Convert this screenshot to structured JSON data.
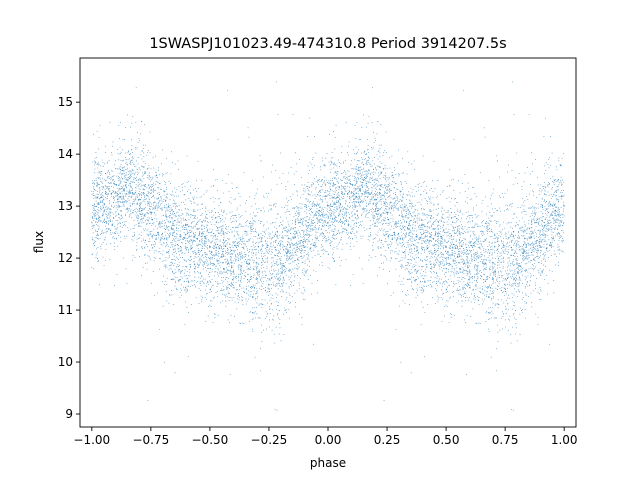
{
  "chart_data": {
    "type": "scatter",
    "title": "1SWASPJ101023.49-474310.8 Period 3914207.5s",
    "xlabel": "phase",
    "ylabel": "flux",
    "xlim": [
      -1.05,
      1.05
    ],
    "ylim": [
      8.75,
      15.85
    ],
    "xticks": [
      -1.0,
      -0.75,
      -0.5,
      -0.25,
      0.0,
      0.25,
      0.5,
      0.75,
      1.0
    ],
    "xtick_labels": [
      "−1.00",
      "−0.75",
      "−0.50",
      "−0.25",
      "0.00",
      "0.25",
      "0.50",
      "0.75",
      "1.00"
    ],
    "yticks": [
      9,
      10,
      11,
      12,
      13,
      14,
      15
    ],
    "ytick_labels": [
      "9",
      "10",
      "11",
      "12",
      "13",
      "14",
      "15"
    ],
    "grid": false,
    "marker_color": "#1f77b4",
    "series": [
      {
        "phase_range": [
          -1.0,
          1.0
        ],
        "folded_period_in_phase": 1.0,
        "flux_profile": [
          {
            "phase": 0.0,
            "flux_mean": 12.95,
            "flux_spread": 0.45
          },
          {
            "phase": 0.05,
            "flux_mean": 13.0,
            "flux_spread": 0.45
          },
          {
            "phase": 0.1,
            "flux_mean": 13.15,
            "flux_spread": 0.45
          },
          {
            "phase": 0.15,
            "flux_mean": 13.35,
            "flux_spread": 0.5
          },
          {
            "phase": 0.2,
            "flux_mean": 13.3,
            "flux_spread": 0.55
          },
          {
            "phase": 0.25,
            "flux_mean": 12.9,
            "flux_spread": 0.55
          },
          {
            "phase": 0.3,
            "flux_mean": 12.7,
            "flux_spread": 0.55
          },
          {
            "phase": 0.35,
            "flux_mean": 12.4,
            "flux_spread": 0.55
          },
          {
            "phase": 0.4,
            "flux_mean": 12.3,
            "flux_spread": 0.5
          },
          {
            "phase": 0.45,
            "flux_mean": 12.2,
            "flux_spread": 0.5
          },
          {
            "phase": 0.5,
            "flux_mean": 12.15,
            "flux_spread": 0.5
          },
          {
            "phase": 0.55,
            "flux_mean": 12.1,
            "flux_spread": 0.5
          },
          {
            "phase": 0.6,
            "flux_mean": 12.1,
            "flux_spread": 0.5
          },
          {
            "phase": 0.65,
            "flux_mean": 12.0,
            "flux_spread": 0.55
          },
          {
            "phase": 0.7,
            "flux_mean": 11.9,
            "flux_spread": 0.55
          },
          {
            "phase": 0.75,
            "flux_mean": 11.9,
            "flux_spread": 0.6
          },
          {
            "phase": 0.8,
            "flux_mean": 11.95,
            "flux_spread": 0.6
          },
          {
            "phase": 0.85,
            "flux_mean": 12.2,
            "flux_spread": 0.55
          },
          {
            "phase": 0.9,
            "flux_mean": 12.5,
            "flux_spread": 0.5
          },
          {
            "phase": 0.95,
            "flux_mean": 12.8,
            "flux_spread": 0.45
          },
          {
            "phase": 1.0,
            "flux_mean": 12.95,
            "flux_spread": 0.45
          }
        ],
        "flux_range": [
          9.0,
          15.5
        ],
        "approx_points": 9000
      }
    ]
  }
}
